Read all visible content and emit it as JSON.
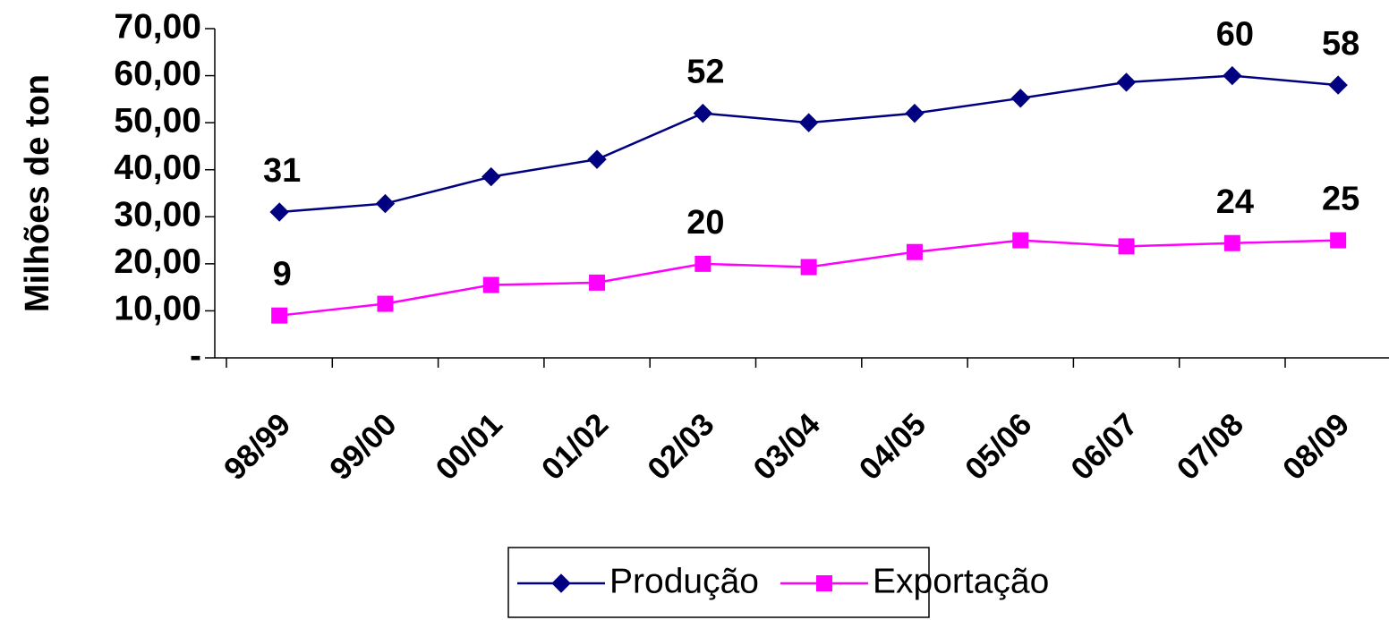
{
  "chart_data": {
    "type": "line",
    "title": "",
    "xlabel": "",
    "ylabel": "Milhões de ton",
    "categories": [
      "98/99",
      "99/00",
      "00/01",
      "01/02",
      "02/03",
      "03/04",
      "04/05",
      "05/06",
      "06/07",
      "07/08",
      "08/09"
    ],
    "ylim": [
      0,
      70
    ],
    "yticks": [
      0,
      10,
      20,
      30,
      40,
      50,
      60,
      70
    ],
    "ytick_labels": [
      "-",
      "10,00",
      "20,00",
      "30,00",
      "40,00",
      "50,00",
      "60,00",
      "70,00"
    ],
    "grid": false,
    "legend_position": "bottom",
    "series": [
      {
        "name": "Produção",
        "color": "#000080",
        "marker": "diamond",
        "values": [
          31,
          32.8,
          38.5,
          42.2,
          52,
          50,
          52,
          55.2,
          58.6,
          60,
          58
        ],
        "data_labels": {
          "0": "31",
          "4": "52",
          "9": "60",
          "10": "58"
        }
      },
      {
        "name": "Exportação",
        "color": "#ff00ff",
        "marker": "square",
        "values": [
          9,
          11.5,
          15.5,
          16,
          20,
          19.3,
          22.5,
          25,
          23.7,
          24.4,
          25
        ],
        "data_labels": {
          "0": "9",
          "4": "20",
          "9": "24",
          "10": "25"
        }
      }
    ]
  }
}
